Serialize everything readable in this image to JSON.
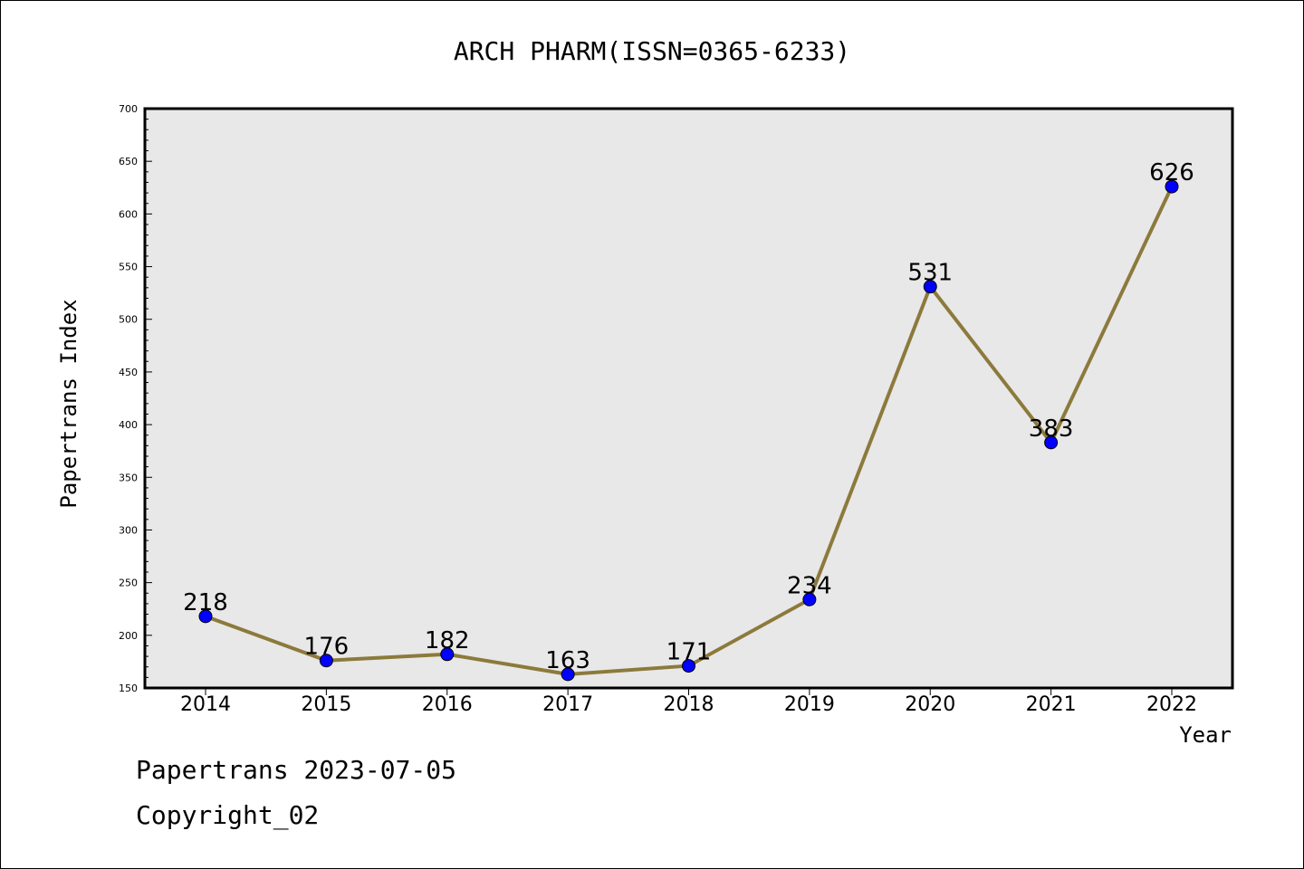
{
  "chart_data": {
    "type": "line",
    "title": "ARCH PHARM(ISSN=0365-6233)",
    "xlabel": "Year",
    "ylabel": "Papertrans Index",
    "x": [
      "2014",
      "2015",
      "2016",
      "2017",
      "2018",
      "2019",
      "2020",
      "2021",
      "2022"
    ],
    "series": [
      {
        "values": [
          218,
          176,
          182,
          163,
          171,
          234,
          531,
          383,
          626
        ]
      }
    ],
    "ylim": [
      150,
      700
    ],
    "yticks": [
      150,
      200,
      250,
      300,
      350,
      400,
      450,
      500,
      550,
      600,
      650,
      700
    ],
    "grid": false,
    "colors": {
      "line": "#8c7a3c",
      "marker": "#0000ff",
      "plot_bg": "#e8e8e8"
    }
  },
  "footer": {
    "line1": "Papertrans 2023-07-05",
    "line2": "Copyright_02"
  }
}
